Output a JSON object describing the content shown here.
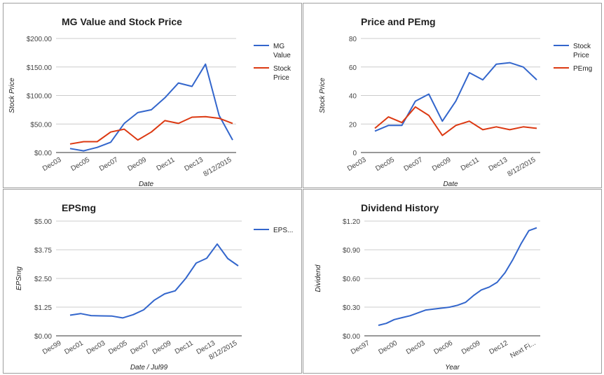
{
  "colors": {
    "blue": "#3366cc",
    "red": "#dc3912"
  },
  "chart_data": [
    {
      "type": "line",
      "title": "MG Value and Stock Price",
      "xlabel": "Date",
      "ylabel": "Stock Price",
      "ylim": [
        0,
        200
      ],
      "yticks": [
        "$200.00",
        "$150.00",
        "$100.00",
        "$50.00",
        "$0.00"
      ],
      "xticks": [
        "Dec03",
        "Dec05",
        "Dec07",
        "Dec09",
        "Dec11",
        "Dec13",
        "8/12/2015"
      ],
      "legend": "right",
      "series": [
        {
          "name": "MG Value",
          "color": "#3366cc",
          "values": [
            7,
            3,
            9,
            18,
            51,
            70,
            75,
            96,
            122,
            116,
            155,
            65,
            22
          ]
        },
        {
          "name": "Stock Price",
          "color": "#dc3912",
          "values": [
            15,
            19,
            19,
            36,
            41,
            22,
            36,
            56,
            51,
            62,
            63,
            60,
            51
          ]
        }
      ]
    },
    {
      "type": "line",
      "title": "Price and PEmg",
      "xlabel": "Date",
      "ylabel": "Stock Price",
      "ylim": [
        0,
        80
      ],
      "yticks": [
        "80",
        "60",
        "40",
        "20",
        "0"
      ],
      "xticks": [
        "Dec03",
        "Dec05",
        "Dec07",
        "Dec09",
        "Dec11",
        "Dec13",
        "8/12/2015"
      ],
      "legend": "right",
      "series": [
        {
          "name": "Stock Price",
          "color": "#3366cc",
          "values": [
            15,
            19,
            19,
            36,
            41,
            22,
            36,
            56,
            51,
            62,
            63,
            60,
            51
          ]
        },
        {
          "name": "PEmg",
          "color": "#dc3912",
          "values": [
            17,
            25,
            21,
            32,
            26,
            12,
            19,
            22,
            16,
            18,
            16,
            18,
            17
          ]
        }
      ]
    },
    {
      "type": "line",
      "title": "EPSmg",
      "xlabel": "Date / Jul99",
      "ylabel": "EPSmg",
      "ylim": [
        0,
        5
      ],
      "yticks": [
        "$5.00",
        "$3.75",
        "$2.50",
        "$1.25",
        "$0.00"
      ],
      "xticks": [
        "Dec99",
        "Dec01",
        "Dec03",
        "Dec05",
        "Dec07",
        "Dec09",
        "Dec11",
        "Dec13",
        "8/12/2015"
      ],
      "legend": "right",
      "series": [
        {
          "name": "EPS...",
          "color": "#3366cc",
          "values": [
            0.9,
            0.97,
            0.88,
            0.87,
            0.86,
            0.78,
            0.92,
            1.13,
            1.55,
            1.83,
            1.96,
            2.5,
            3.17,
            3.38,
            4.0,
            3.37,
            3.05
          ]
        }
      ]
    },
    {
      "type": "line",
      "title": "Dividend History",
      "xlabel": "Year",
      "ylabel": "Dividend",
      "ylim": [
        0,
        1.2
      ],
      "yticks": [
        "$1.20",
        "$0.90",
        "$0.60",
        "$0.30",
        "$0.00"
      ],
      "xticks": [
        "Dec97",
        "Dec00",
        "Dec03",
        "Dec06",
        "Dec09",
        "Dec12",
        "Next Fi..."
      ],
      "legend": "none",
      "series": [
        {
          "name": "",
          "color": "#3366cc",
          "values": [
            0.11,
            0.13,
            0.17,
            0.19,
            0.21,
            0.24,
            0.27,
            0.28,
            0.29,
            0.3,
            0.32,
            0.35,
            0.42,
            0.48,
            0.51,
            0.56,
            0.66,
            0.8,
            0.96,
            1.1,
            1.13
          ]
        }
      ]
    }
  ]
}
